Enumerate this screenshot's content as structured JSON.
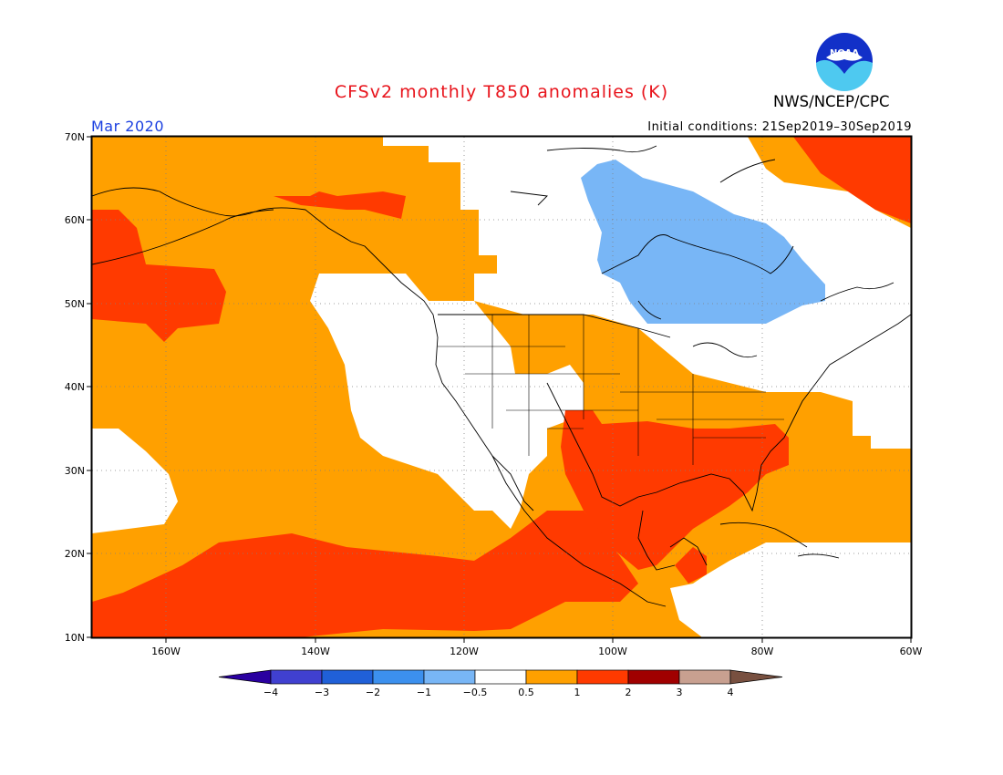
{
  "header": {
    "title": "CFSv2 monthly T850 anomalies (K)",
    "agency": "NWS/NCEP/CPC",
    "logo_text": "NOAA",
    "valid_month": "Mar 2020",
    "initial_conditions": "Initial conditions: 21Sep2019–30Sep2019"
  },
  "colors": {
    "title": "#e8141c",
    "month": "#1a3fe0",
    "logo_blue": "#1230c8",
    "logo_cyan": "#4ec9f0"
  },
  "axes": {
    "lat_labels": [
      "70N",
      "60N",
      "50N",
      "40N",
      "30N",
      "20N",
      "10N"
    ],
    "lon_labels": [
      "160W",
      "140W",
      "120W",
      "100W",
      "80W",
      "60W"
    ]
  },
  "legend": {
    "ticks": [
      "−4",
      "−3",
      "−2",
      "−1",
      "−0.5",
      "0.5",
      "1",
      "2",
      "3",
      "4"
    ],
    "colors": [
      "#2a00a0",
      "#4040d0",
      "#2060d8",
      "#3c90ee",
      "#78b6f6",
      "#ffffff",
      "#ffa000",
      "#ff3a00",
      "#a00000",
      "#c8a090",
      "#785040"
    ]
  }
}
